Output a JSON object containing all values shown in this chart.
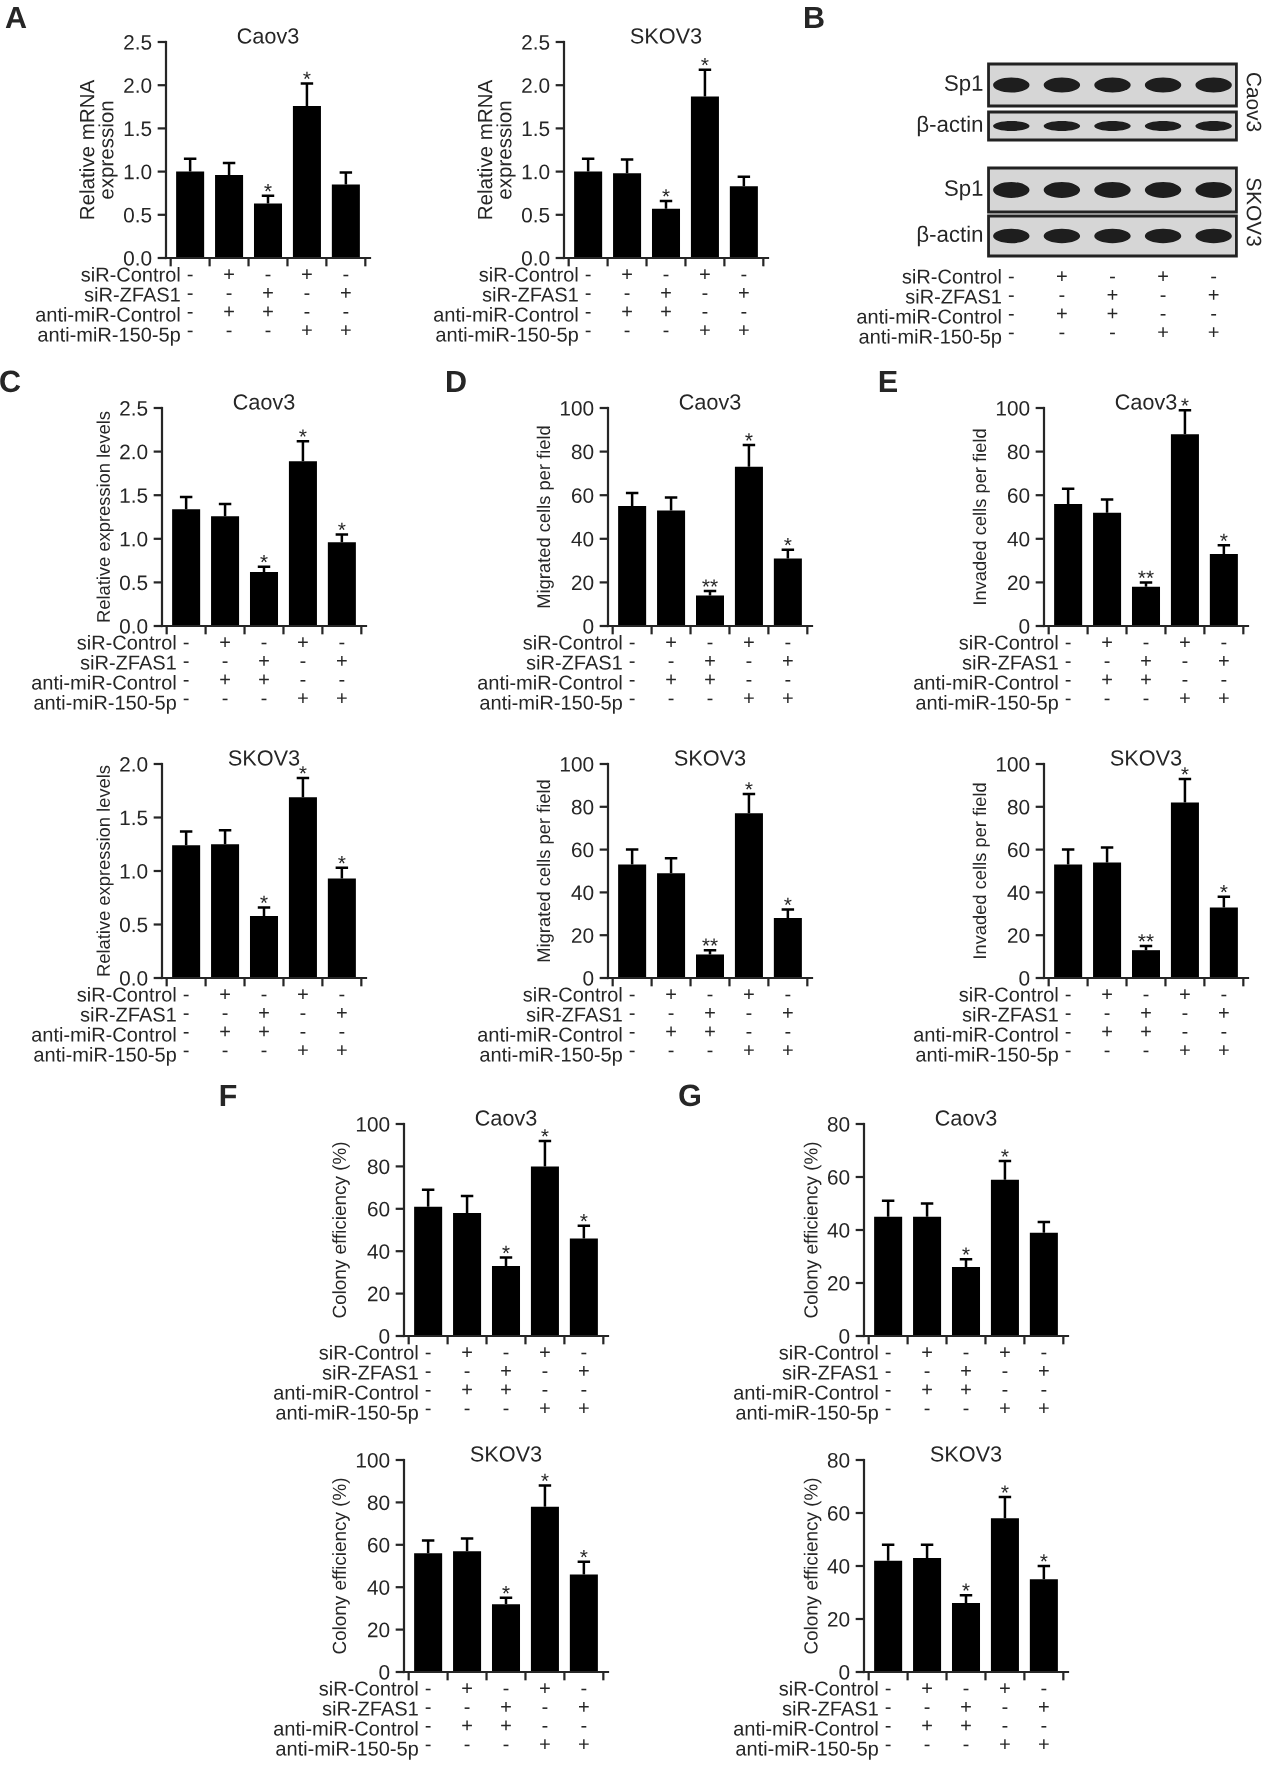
{
  "chart_data": [
    {
      "type": "bar",
      "title": "Caov3",
      "ylabel": "Relative mRNA\nexpression",
      "categories": [
        "-\n-\n-\n-",
        "+\n-\n+\n-",
        "-\n+\n+\n-",
        "+\n-\n-\n+",
        "-\n+\n-\n+"
      ],
      "values": [
        1.0,
        0.96,
        0.63,
        1.76,
        0.85
      ],
      "errors": [
        [
          1.0,
          1.15
        ],
        [
          0.96,
          1.1
        ],
        [
          0.63,
          0.72
        ],
        [
          1.76,
          2.02
        ],
        [
          0.85,
          0.99
        ]
      ],
      "color": "#000000",
      "ylim": [
        0,
        2.5
      ],
      "yticks": [
        {
          "value": 0,
          "label": "0.0"
        },
        {
          "value": 0.5,
          "label": "0.5"
        },
        {
          "value": 1,
          "label": "1.0"
        },
        {
          "value": 1.5,
          "label": "1.5"
        },
        {
          "value": 2,
          "label": "2.0"
        },
        {
          "value": 2.5,
          "label": "2.5"
        }
      ],
      "annotations": [
        "A",
        {
          "text": "*",
          "x": "-\n+\n+\n-",
          "y": 0.72
        },
        {
          "text": "*",
          "x": "+\n-\n-\n+",
          "y": 2.02
        },
        "siR-Control",
        "siR-ZFAS1",
        "anti-miR-Control",
        "anti-miR-150-5p"
      ]
    },
    {
      "type": "bar",
      "title": "SKOV3",
      "ylabel": "Relative mRNA\nexpression",
      "categories": [
        "-\n-\n-\n-",
        "+\n-\n+\n-",
        "-\n+\n+\n-",
        "+\n-\n-\n+",
        "-\n+\n-\n+"
      ],
      "values": [
        1.0,
        0.98,
        0.57,
        1.87,
        0.83
      ],
      "errors": [
        [
          1.0,
          1.15
        ],
        [
          0.98,
          1.14
        ],
        [
          0.57,
          0.66
        ],
        [
          1.87,
          2.18
        ],
        [
          0.83,
          0.94
        ]
      ],
      "color": "#000000",
      "ylim": [
        0,
        2.5
      ],
      "yticks": [
        {
          "value": 0,
          "label": "0.0"
        },
        {
          "value": 0.5,
          "label": "0.5"
        },
        {
          "value": 1,
          "label": "1.0"
        },
        {
          "value": 1.5,
          "label": "1.5"
        },
        {
          "value": 2,
          "label": "2.0"
        },
        {
          "value": 2.5,
          "label": "2.5"
        }
      ],
      "annotations": [
        {
          "text": "*",
          "x": "-\n+\n+\n-",
          "y": 0.66
        },
        {
          "text": "*",
          "x": "+\n-\n-\n+",
          "y": 2.18
        },
        "siR-Control",
        "siR-ZFAS1",
        "anti-miR-Control",
        "anti-miR-150-5p"
      ]
    },
    {
      "type": "other",
      "categories": [
        "-\n-\n-\n-",
        "+\n-\n+\n-",
        "-\n+\n+\n-",
        "+\n-\n-\n+",
        "-\n+\n-\n+"
      ],
      "annotations": [
        "B",
        "Sp1",
        "β-actin",
        "Sp1",
        "β-actin",
        "Caov3",
        "SKOV3",
        "siR-Control",
        "siR-ZFAS1",
        "anti-miR-Control",
        "anti-miR-150-5p"
      ]
    },
    {
      "type": "bar",
      "title": "Caov3",
      "ylabel": "Relative expression levels",
      "categories": [
        "-\n-\n-\n-",
        "+\n-\n+\n-",
        "-\n+\n+\n-",
        "+\n-\n-\n+",
        "-\n+\n-\n+"
      ],
      "values": [
        1.34,
        1.26,
        0.62,
        1.89,
        0.96
      ],
      "errors": [
        [
          1.34,
          1.48
        ],
        [
          1.26,
          1.4
        ],
        [
          0.62,
          0.68
        ],
        [
          1.89,
          2.12
        ],
        [
          0.96,
          1.05
        ]
      ],
      "color": "#000000",
      "ylim": [
        0,
        2.5
      ],
      "yticks": [
        {
          "value": 0,
          "label": "0.0"
        },
        {
          "value": 0.5,
          "label": "0.5"
        },
        {
          "value": 1,
          "label": "1.0"
        },
        {
          "value": 1.5,
          "label": "1.5"
        },
        {
          "value": 2,
          "label": "2.0"
        },
        {
          "value": 2.5,
          "label": "2.5"
        }
      ],
      "annotations": [
        "C",
        {
          "text": "*",
          "x": "-\n+\n+\n-",
          "y": 0.68
        },
        {
          "text": "*",
          "x": "+\n-\n-\n+",
          "y": 2.12
        },
        {
          "text": "*",
          "x": "-\n+\n-\n+",
          "y": 1.05
        },
        "siR-Control",
        "siR-ZFAS1",
        "anti-miR-Control",
        "anti-miR-150-5p"
      ]
    },
    {
      "type": "bar",
      "title": "Caov3",
      "ylabel": "Migrated cells per field",
      "categories": [
        "-\n-\n-\n-",
        "+\n-\n+\n-",
        "-\n+\n+\n-",
        "+\n-\n-\n+",
        "-\n+\n-\n+"
      ],
      "values": [
        55,
        53,
        14,
        73,
        31
      ],
      "errors": [
        [
          55,
          61
        ],
        [
          53,
          59
        ],
        [
          14,
          16
        ],
        [
          73,
          83
        ],
        [
          31,
          35
        ]
      ],
      "color": "#000000",
      "ylim": [
        0,
        100
      ],
      "yticks": [
        0,
        20,
        40,
        60,
        80,
        100
      ],
      "annotations": [
        "D",
        {
          "text": "**",
          "x": "-\n+\n+\n-",
          "y": 16
        },
        {
          "text": "*",
          "x": "+\n-\n-\n+",
          "y": 83
        },
        {
          "text": "*",
          "x": "-\n+\n-\n+",
          "y": 35
        },
        "siR-Control",
        "siR-ZFAS1",
        "anti-miR-Control",
        "anti-miR-150-5p"
      ]
    },
    {
      "type": "bar",
      "title": "Caov3",
      "ylabel": "Invaded cells per field",
      "categories": [
        "-\n-\n-\n-",
        "+\n-\n+\n-",
        "-\n+\n+\n-",
        "+\n-\n-\n+",
        "-\n+\n-\n+"
      ],
      "values": [
        56,
        52,
        18,
        88,
        33
      ],
      "errors": [
        [
          56,
          63
        ],
        [
          52,
          58
        ],
        [
          18,
          20
        ],
        [
          88,
          99
        ],
        [
          33,
          37
        ]
      ],
      "color": "#000000",
      "ylim": [
        0,
        100
      ],
      "yticks": [
        0,
        20,
        40,
        60,
        80,
        100
      ],
      "annotations": [
        "E",
        {
          "text": "**",
          "x": "-\n+\n+\n-",
          "y": 20
        },
        {
          "text": "*",
          "x": "+\n-\n-\n+",
          "y": 99
        },
        {
          "text": "*",
          "x": "-\n+\n-\n+",
          "y": 37
        },
        "siR-Control",
        "siR-ZFAS1",
        "anti-miR-Control",
        "anti-miR-150-5p"
      ]
    },
    {
      "type": "bar",
      "title": "SKOV3",
      "ylabel": "Relative expression levels",
      "categories": [
        "-\n-\n-\n-",
        "+\n-\n+\n-",
        "-\n+\n+\n-",
        "+\n-\n-\n+",
        "-\n+\n-\n+"
      ],
      "values": [
        1.24,
        1.25,
        0.58,
        1.69,
        0.93
      ],
      "errors": [
        [
          1.24,
          1.37
        ],
        [
          1.25,
          1.38
        ],
        [
          0.58,
          0.66
        ],
        [
          1.69,
          1.87
        ],
        [
          0.93,
          1.03
        ]
      ],
      "color": "#000000",
      "ylim": [
        0,
        2.0
      ],
      "yticks": [
        {
          "value": 0,
          "label": "0.0"
        },
        {
          "value": 0.5,
          "label": "0.5"
        },
        {
          "value": 1,
          "label": "1.0"
        },
        {
          "value": 1.5,
          "label": "1.5"
        },
        {
          "value": 2,
          "label": "2.0"
        }
      ],
      "annotations": [
        {
          "text": "*",
          "x": "-\n+\n+\n-",
          "y": 0.66
        },
        {
          "text": "*",
          "x": "+\n-\n-\n+",
          "y": 1.87
        },
        {
          "text": "*",
          "x": "-\n+\n-\n+",
          "y": 1.03
        },
        "siR-Control",
        "siR-ZFAS1",
        "anti-miR-Control",
        "anti-miR-150-5p"
      ]
    },
    {
      "type": "bar",
      "title": "SKOV3",
      "ylabel": "Migrated cells per field",
      "categories": [
        "-\n-\n-\n-",
        "+\n-\n+\n-",
        "-\n+\n+\n-",
        "+\n-\n-\n+",
        "-\n+\n-\n+"
      ],
      "values": [
        53,
        49,
        11,
        77,
        28
      ],
      "errors": [
        [
          53,
          60
        ],
        [
          49,
          56
        ],
        [
          11,
          13
        ],
        [
          77,
          86
        ],
        [
          28,
          32
        ]
      ],
      "color": "#000000",
      "ylim": [
        0,
        100
      ],
      "yticks": [
        0,
        20,
        40,
        60,
        80,
        100
      ],
      "annotations": [
        {
          "text": "**",
          "x": "-\n+\n+\n-",
          "y": 13
        },
        {
          "text": "*",
          "x": "+\n-\n-\n+",
          "y": 86
        },
        {
          "text": "*",
          "x": "-\n+\n-\n+",
          "y": 32
        },
        "siR-Control",
        "siR-ZFAS1",
        "anti-miR-Control",
        "anti-miR-150-5p"
      ]
    },
    {
      "type": "bar",
      "title": "SKOV3",
      "ylabel": "Invaded cells per field",
      "categories": [
        "-\n-\n-\n-",
        "+\n-\n+\n-",
        "-\n+\n+\n-",
        "+\n-\n-\n+",
        "-\n+\n-\n+"
      ],
      "values": [
        53,
        54,
        13,
        82,
        33
      ],
      "errors": [
        [
          53,
          60
        ],
        [
          54,
          61
        ],
        [
          13,
          15
        ],
        [
          82,
          93
        ],
        [
          33,
          38
        ]
      ],
      "color": "#000000",
      "ylim": [
        0,
        100
      ],
      "yticks": [
        0,
        20,
        40,
        60,
        80,
        100
      ],
      "annotations": [
        {
          "text": "**",
          "x": "-\n+\n+\n-",
          "y": 15
        },
        {
          "text": "*",
          "x": "+\n-\n-\n+",
          "y": 93
        },
        {
          "text": "*",
          "x": "-\n+\n-\n+",
          "y": 38
        },
        "siR-Control",
        "siR-ZFAS1",
        "anti-miR-Control",
        "anti-miR-150-5p"
      ]
    },
    {
      "type": "bar",
      "title": "Caov3",
      "ylabel": "Colony efficiency (%)",
      "categories": [
        "-\n-\n-\n-",
        "+\n-\n+\n-",
        "-\n+\n+\n-",
        "+\n-\n-\n+",
        "-\n+\n-\n+"
      ],
      "values": [
        61,
        58,
        33,
        80,
        46
      ],
      "errors": [
        [
          61,
          69
        ],
        [
          58,
          66
        ],
        [
          33,
          37
        ],
        [
          80,
          92
        ],
        [
          46,
          52
        ]
      ],
      "color": "#000000",
      "ylim": [
        0,
        100
      ],
      "yticks": [
        0,
        20,
        40,
        60,
        80,
        100
      ],
      "annotations": [
        "F",
        {
          "text": "*",
          "x": "-\n+\n+\n-",
          "y": 37
        },
        {
          "text": "*",
          "x": "+\n-\n-\n+",
          "y": 92
        },
        {
          "text": "*",
          "x": "-\n+\n-\n+",
          "y": 52
        },
        "siR-Control",
        "siR-ZFAS1",
        "anti-miR-Control",
        "anti-miR-150-5p"
      ]
    },
    {
      "type": "bar",
      "title": "Caov3",
      "ylabel": "Colony efficiency (%)",
      "categories": [
        "-\n-\n-\n-",
        "+\n-\n+\n-",
        "-\n+\n+\n-",
        "+\n-\n-\n+",
        "-\n+\n-\n+"
      ],
      "values": [
        45,
        45,
        26,
        59,
        39
      ],
      "errors": [
        [
          45,
          51
        ],
        [
          45,
          50
        ],
        [
          26,
          29
        ],
        [
          59,
          66
        ],
        [
          39,
          43
        ]
      ],
      "color": "#000000",
      "ylim": [
        0,
        80
      ],
      "yticks": [
        0,
        20,
        40,
        60,
        80
      ],
      "annotations": [
        "G",
        {
          "text": "*",
          "x": "-\n+\n+\n-",
          "y": 29
        },
        {
          "text": "*",
          "x": "+\n-\n-\n+",
          "y": 66
        },
        "siR-Control",
        "siR-ZFAS1",
        "anti-miR-Control",
        "anti-miR-150-5p"
      ]
    },
    {
      "type": "bar",
      "title": "SKOV3",
      "ylabel": "Colony efficiency (%)",
      "categories": [
        "-\n-\n-\n-",
        "+\n-\n+\n-",
        "-\n+\n+\n-",
        "+\n-\n-\n+",
        "-\n+\n-\n+"
      ],
      "values": [
        56,
        57,
        32,
        78,
        46
      ],
      "errors": [
        [
          56,
          62
        ],
        [
          57,
          63
        ],
        [
          32,
          35
        ],
        [
          78,
          88
        ],
        [
          46,
          52
        ]
      ],
      "color": "#000000",
      "ylim": [
        0,
        100
      ],
      "yticks": [
        0,
        20,
        40,
        60,
        80,
        100
      ],
      "annotations": [
        {
          "text": "*",
          "x": "-\n+\n+\n-",
          "y": 35
        },
        {
          "text": "*",
          "x": "+\n-\n-\n+",
          "y": 88
        },
        {
          "text": "*",
          "x": "-\n+\n-\n+",
          "y": 52
        },
        "siR-Control",
        "siR-ZFAS1",
        "anti-miR-Control",
        "anti-miR-150-5p"
      ]
    },
    {
      "type": "bar",
      "title": "SKOV3",
      "ylabel": "Colony efficiency (%)",
      "categories": [
        "-\n-\n-\n-",
        "+\n-\n+\n-",
        "-\n+\n+\n-",
        "+\n-\n-\n+",
        "-\n+\n-\n+"
      ],
      "values": [
        42,
        43,
        26,
        58,
        35
      ],
      "errors": [
        [
          42,
          48
        ],
        [
          43,
          48
        ],
        [
          26,
          29
        ],
        [
          58,
          66
        ],
        [
          35,
          40
        ]
      ],
      "color": "#000000",
      "ylim": [
        0,
        80
      ],
      "yticks": [
        0,
        20,
        40,
        60,
        80
      ],
      "annotations": [
        {
          "text": "*",
          "x": "-\n+\n+\n-",
          "y": 29
        },
        {
          "text": "*",
          "x": "+\n-\n-\n+",
          "y": 66
        },
        {
          "text": "*",
          "x": "-\n+\n-\n+",
          "y": 40
        },
        "siR-Control",
        "siR-ZFAS1",
        "anti-miR-Control",
        "anti-miR-150-5p"
      ]
    }
  ]
}
